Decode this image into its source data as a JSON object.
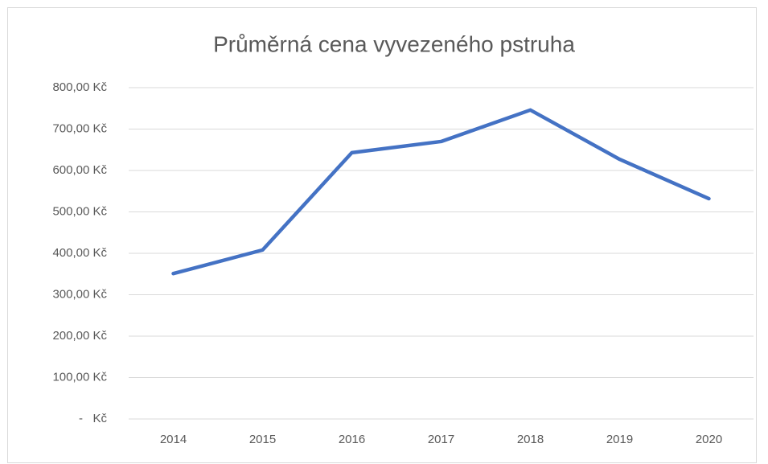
{
  "chart_data": {
    "type": "line",
    "title": "Průměrná cena vyvezeného pstruha",
    "categories": [
      "2014",
      "2015",
      "2016",
      "2017",
      "2018",
      "2019",
      "2020"
    ],
    "series": [
      {
        "name": "Průměrná cena",
        "color": "#4472c4",
        "values": [
          351,
          408,
          643,
          670,
          746,
          627,
          532
        ]
      }
    ],
    "ylim": [
      0,
      800
    ],
    "yticks": [
      {
        "value": 0,
        "label": "-   Kč"
      },
      {
        "value": 100,
        "label": "100,00 Kč"
      },
      {
        "value": 200,
        "label": "200,00 Kč"
      },
      {
        "value": 300,
        "label": "300,00 Kč"
      },
      {
        "value": 400,
        "label": "400,00 Kč"
      },
      {
        "value": 500,
        "label": "500,00 Kč"
      },
      {
        "value": 600,
        "label": "600,00 Kč"
      },
      {
        "value": 700,
        "label": "700,00 Kč"
      },
      {
        "value": 800,
        "label": "800,00 Kč"
      }
    ],
    "grid": true
  }
}
